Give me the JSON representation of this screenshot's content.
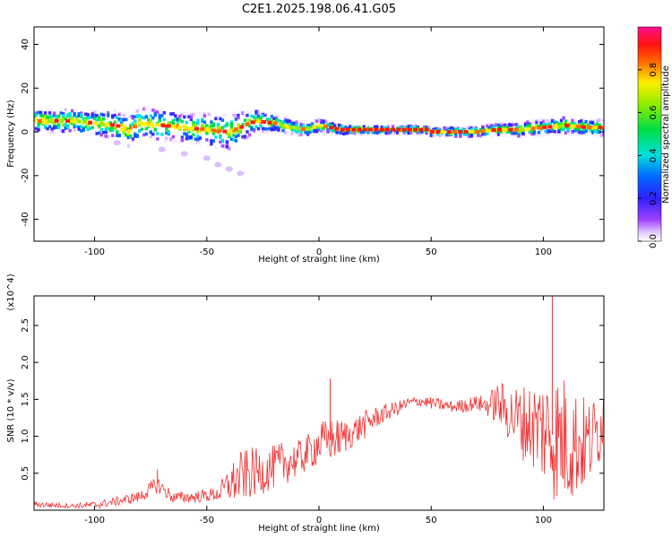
{
  "title": "C2E1.2025.198.06.41.G05",
  "chart_data": [
    {
      "type": "heatmap",
      "title": "C2E1.2025.198.06.41.G05",
      "xlabel": "Height of straight line (km)",
      "ylabel": "Frequency (Hz)",
      "xlim": [
        -127,
        127
      ],
      "ylim": [
        -50,
        48
      ],
      "xticks": [
        "-100",
        "-50",
        "0",
        "50",
        "100"
      ],
      "yticks": [
        "40",
        "20",
        "0",
        "-20",
        "-40"
      ],
      "colorbar": {
        "label": "Normalized spectral amplitude",
        "ticks": [
          "0.0",
          "0.2",
          "0.4",
          "0.6",
          "0.8"
        ],
        "range": [
          0,
          1
        ],
        "colormap": "rainbow (violet-blue-cyan-green-yellow-red-magenta)"
      },
      "ridge": {
        "x": [
          -125,
          -110,
          -100,
          -90,
          -85,
          -80,
          -70,
          -60,
          -50,
          -40,
          -35,
          -28,
          -20,
          -12,
          -5,
          0,
          10,
          20,
          30,
          40,
          48,
          50,
          60,
          70,
          80,
          90,
          100,
          110,
          120,
          127
        ],
        "frequency": [
          5,
          5,
          4,
          3,
          0,
          4,
          3,
          2,
          1,
          0,
          2,
          5,
          4,
          2,
          1,
          3,
          1,
          1,
          1,
          1,
          1,
          0,
          0,
          0,
          1,
          1,
          2,
          3,
          2,
          2
        ]
      },
      "spread": {
        "x": [
          -125,
          -100,
          -80,
          -60,
          -40,
          -30,
          -20,
          0,
          20,
          50,
          80,
          100,
          127
        ],
        "width": [
          6,
          6,
          8,
          7,
          9,
          6,
          4,
          3,
          2,
          2,
          3,
          4,
          4
        ]
      },
      "tail": {
        "x": [
          -90,
          -70,
          -60,
          -50,
          -45,
          -40,
          -35
        ],
        "frequency": [
          -5,
          -8,
          -10,
          -12,
          -15,
          -17,
          -19
        ]
      }
    },
    {
      "type": "line",
      "xlabel": "Height of straight line (km)",
      "ylabel": "SNR (10 * v/v)",
      "y_multiplier": "(x10^4)",
      "xlim": [
        -127,
        127
      ],
      "ylim": [
        0,
        2.9
      ],
      "xticks": [
        "-100",
        "-50",
        "0",
        "50",
        "100"
      ],
      "yticks": [
        "0.5",
        "1.0",
        "1.5",
        "2.0",
        "2.5"
      ],
      "color": "#ee3333",
      "series": [
        {
          "x": [
            -127,
            -120,
            -110,
            -100,
            -90,
            -80,
            -72,
            -65,
            -55,
            -45,
            -40,
            -35,
            -30,
            -25,
            -20,
            -15,
            -10,
            -5,
            0,
            5,
            10,
            15,
            20,
            25,
            30,
            35,
            40,
            45,
            50,
            55,
            60,
            65,
            70,
            75,
            80,
            85,
            90,
            95,
            100,
            105,
            110,
            115,
            120,
            125,
            127
          ],
          "y": [
            0.08,
            0.07,
            0.06,
            0.07,
            0.12,
            0.18,
            0.35,
            0.17,
            0.18,
            0.22,
            0.35,
            0.45,
            0.5,
            0.52,
            0.58,
            0.65,
            0.68,
            0.78,
            0.9,
            0.95,
            0.98,
            1.05,
            1.15,
            1.25,
            1.32,
            1.38,
            1.45,
            1.48,
            1.45,
            1.42,
            1.4,
            1.42,
            1.45,
            1.42,
            1.45,
            1.3,
            1.2,
            1.15,
            1.1,
            1.0,
            0.95,
            0.9,
            0.9,
            1.1,
            1.35
          ],
          "amplitude": [
            0.04,
            0.04,
            0.03,
            0.05,
            0.06,
            0.08,
            0.12,
            0.08,
            0.08,
            0.1,
            0.25,
            0.35,
            0.35,
            0.3,
            0.3,
            0.3,
            0.25,
            0.25,
            0.3,
            0.3,
            0.25,
            0.2,
            0.2,
            0.15,
            0.12,
            0.1,
            0.08,
            0.08,
            0.08,
            0.08,
            0.08,
            0.1,
            0.1,
            0.15,
            0.3,
            0.4,
            0.5,
            0.6,
            0.75,
            0.9,
            0.9,
            0.75,
            0.6,
            0.5,
            0.4
          ]
        }
      ],
      "annotations": [
        {
          "x": -72,
          "y": 0.55
        },
        {
          "x": 5,
          "y": 1.78
        },
        {
          "x": 104,
          "y": 2.92
        }
      ]
    }
  ]
}
